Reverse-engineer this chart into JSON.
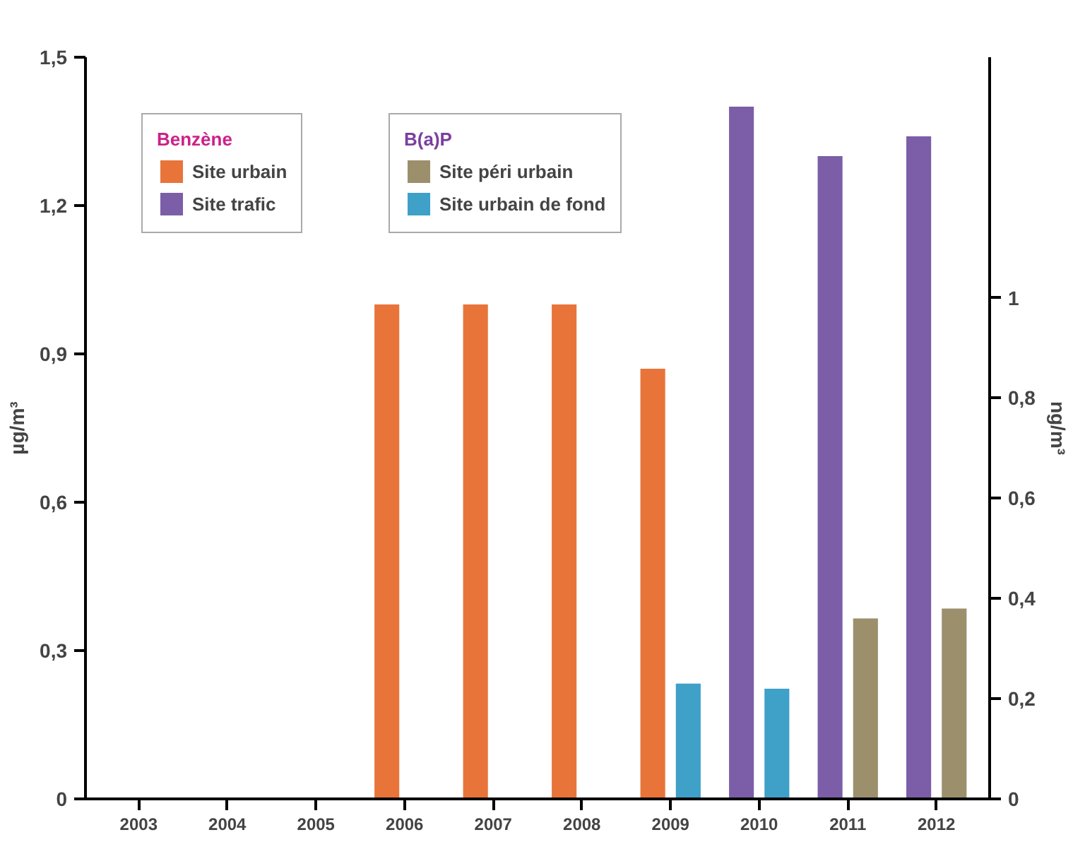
{
  "chart_data": {
    "type": "bar",
    "categories": [
      "2003",
      "2004",
      "2005",
      "2006",
      "2007",
      "2008",
      "2009",
      "2010",
      "2011",
      "2012"
    ],
    "ylabel": "µg/m³",
    "y2label": "ng/m³",
    "annotations": [
      "Benzène",
      "B(a)P"
    ],
    "series": [
      {
        "name": "Site urbain",
        "color": "#e8743a",
        "values": [
          null,
          null,
          null,
          1.0,
          1.0,
          1.0,
          0.87,
          null,
          null,
          null
        ]
      },
      {
        "name": "Site trafic",
        "color": "#7b5ea7",
        "values": [
          null,
          null,
          null,
          null,
          null,
          null,
          null,
          1.4,
          1.3,
          1.34
        ]
      },
      {
        "name": "Site péri urbain",
        "color": "#9c8f6c",
        "axis": "y2",
        "values": [
          null,
          null,
          null,
          null,
          null,
          null,
          null,
          null,
          0.36,
          0.38
        ]
      },
      {
        "name": "Site urbain de fond",
        "color": "#3fa0c8",
        "axis": "y2",
        "values": [
          null,
          null,
          null,
          null,
          null,
          null,
          0.23,
          0.22,
          null,
          null
        ]
      }
    ],
    "ylim": [
      0,
      1.5
    ],
    "yticks": [
      0,
      {
        "value": 0.3,
        "label": "0,3"
      },
      {
        "value": 0.6,
        "label": "0,6"
      },
      {
        "value": 0.9,
        "label": "0,9"
      },
      {
        "value": 1.2,
        "label": "1,2"
      },
      {
        "value": 1.5,
        "label": "1,5"
      }
    ],
    "y2lim": [
      0,
      1.48
    ],
    "y2ticks": [
      0,
      {
        "value": 0.2,
        "label": "0,2"
      },
      {
        "value": 0.4,
        "label": "0,4"
      },
      {
        "value": 0.6,
        "label": "0,6"
      },
      {
        "value": 0.8,
        "label": "0,8"
      },
      1
    ],
    "grid": false,
    "legend": "top"
  }
}
